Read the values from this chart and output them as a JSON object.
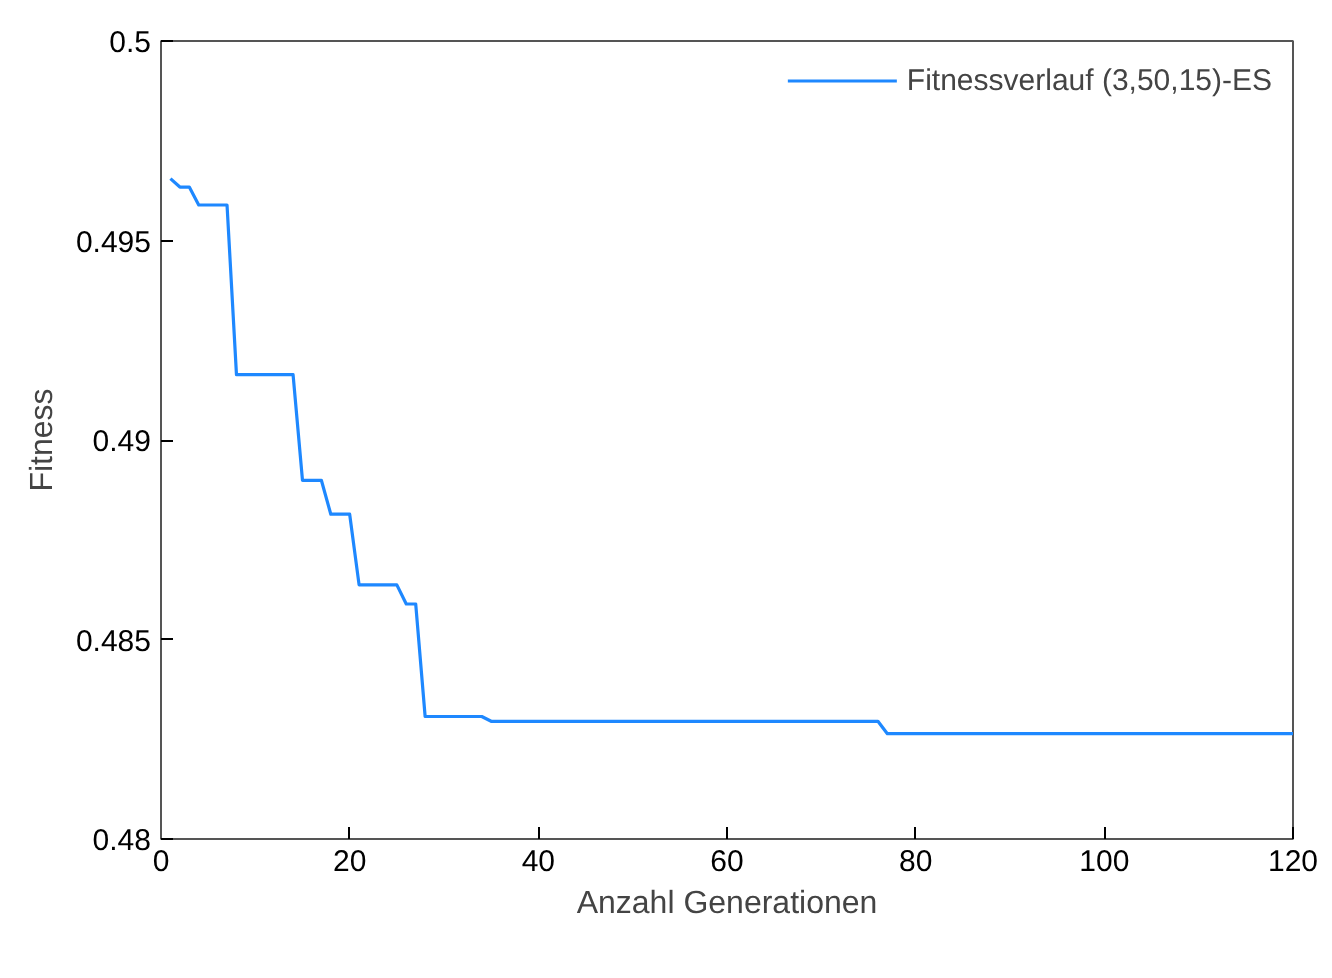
{
  "chart_data": {
    "type": "line",
    "xlabel": "Anzahl Generationen",
    "ylabel": "Fitness",
    "xlim": [
      0,
      120
    ],
    "xticks": [
      0,
      20,
      40,
      60,
      80,
      100,
      120
    ],
    "ylim": [
      0.48,
      0.5
    ],
    "yticks": [
      0.48,
      0.485,
      0.49,
      0.495,
      0.5
    ],
    "grid": false,
    "legend": "top right",
    "series": [
      {
        "name": "Fitnessverlauf (3,50,15)-ES",
        "color": "#1e88ff",
        "x": [
          1,
          2,
          3,
          4,
          7,
          8,
          14,
          15,
          17,
          18,
          20,
          21,
          25,
          26,
          27,
          28,
          34,
          35,
          76,
          77,
          120
        ],
        "values": [
          0.49655,
          0.49634,
          0.49634,
          0.49589,
          0.49589,
          0.49164,
          0.49164,
          0.48899,
          0.48899,
          0.48814,
          0.48814,
          0.48637,
          0.48637,
          0.48589,
          0.48589,
          0.48307,
          0.48307,
          0.48295,
          0.48295,
          0.48264,
          0.48264
        ]
      }
    ]
  }
}
